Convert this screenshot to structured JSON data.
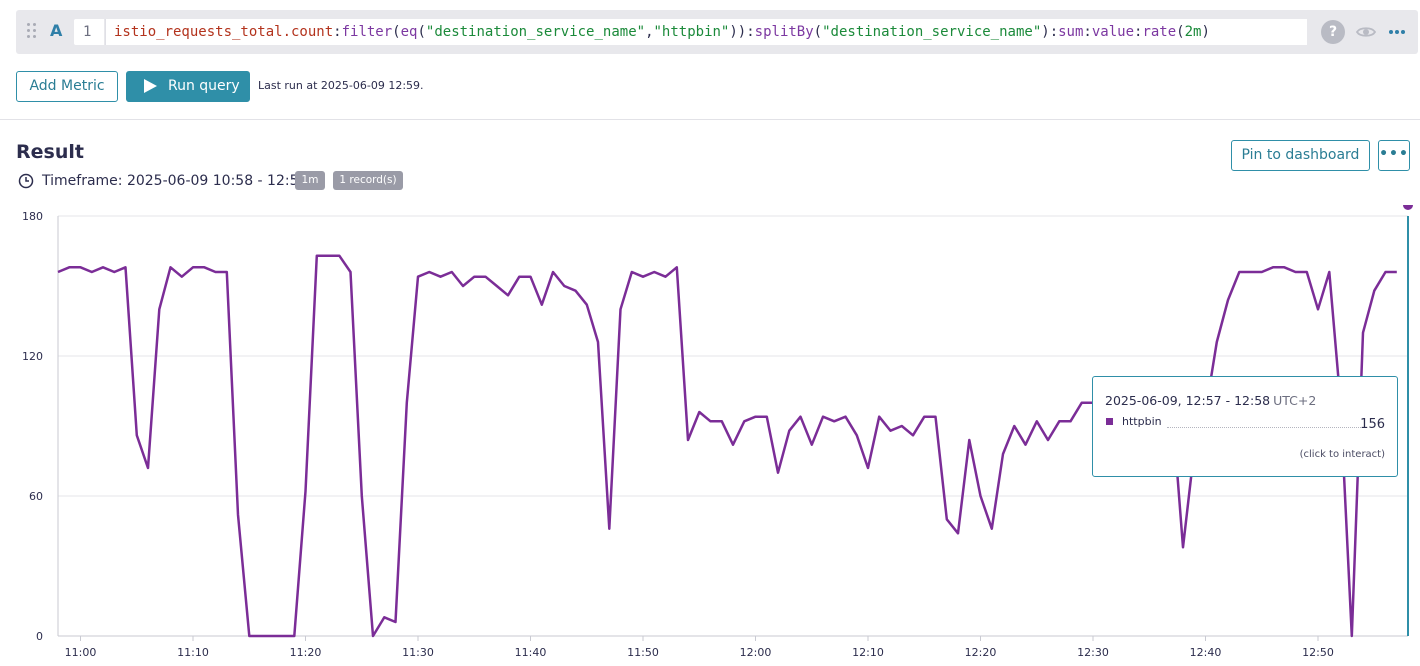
{
  "query": {
    "letter": "A",
    "line_number": "1",
    "tokens": [
      {
        "t": "istio_requests_total.count",
        "c": "metric"
      },
      {
        "t": ":",
        "c": "punc"
      },
      {
        "t": "filter",
        "c": "fn"
      },
      {
        "t": "(",
        "c": "punc"
      },
      {
        "t": "eq",
        "c": "fn"
      },
      {
        "t": "(",
        "c": "punc"
      },
      {
        "t": "\"destination_service_name\"",
        "c": "str"
      },
      {
        "t": ",",
        "c": "punc"
      },
      {
        "t": "\"httpbin\"",
        "c": "str"
      },
      {
        "t": ")):",
        "c": "punc"
      },
      {
        "t": "splitBy",
        "c": "fn"
      },
      {
        "t": "(",
        "c": "punc"
      },
      {
        "t": "\"destination_service_name\"",
        "c": "str"
      },
      {
        "t": "):",
        "c": "punc"
      },
      {
        "t": "sum",
        "c": "fn"
      },
      {
        "t": ":",
        "c": "punc"
      },
      {
        "t": "value",
        "c": "fn"
      },
      {
        "t": ":",
        "c": "punc"
      },
      {
        "t": "rate",
        "c": "fn"
      },
      {
        "t": "(",
        "c": "punc"
      },
      {
        "t": "2m",
        "c": "num"
      },
      {
        "t": ")",
        "c": "punc"
      }
    ],
    "help_icon": "?"
  },
  "icons": {
    "drag": "drag-handle-icon",
    "help": "help-icon",
    "visibility": "eye-icon",
    "more": "more-horizontal-icon",
    "run": "play-icon",
    "clock": "clock-icon"
  },
  "toolbar": {
    "add_metric_label": "Add Metric",
    "run_query_label": "Run query",
    "last_run": "Last run at 2025-06-09 12:59."
  },
  "result": {
    "title": "Result",
    "timeframe": "Timeframe: 2025-06-09 10:58 - 12:58",
    "interval_badge": "1m",
    "records_badge": "1 record(s)",
    "pin_label": "Pin to dashboard",
    "more_label": "•••"
  },
  "tooltip": {
    "time": "2025-06-09, 12:57 - 12:58",
    "timezone": "UTC+2",
    "series_name": "httpbin",
    "value": "156",
    "hint": "(click to interact)"
  },
  "colors": {
    "accent": "#2f8fa8",
    "series": "#7b2d97",
    "grid": "#e4e4ea"
  },
  "chart_data": {
    "type": "line",
    "ylim": [
      0,
      180
    ],
    "y_ticks": [
      "0",
      "60",
      "120",
      "180"
    ],
    "x_ticks": [
      "11:00",
      "11:10",
      "11:20",
      "11:30",
      "11:40",
      "11:50",
      "12:00",
      "12:10",
      "12:20",
      "12:30",
      "12:40",
      "12:50"
    ],
    "grid": true,
    "x_start_minute": -2,
    "x_end_minute": 118,
    "x_minutes_per_point": 1,
    "series": [
      {
        "name": "httpbin",
        "values": [
          156,
          158,
          158,
          156,
          158,
          156,
          158,
          86,
          72,
          140,
          158,
          154,
          158,
          158,
          156,
          156,
          52,
          0,
          0,
          0,
          0,
          0,
          62,
          163,
          163,
          163,
          156,
          60,
          0,
          8,
          6,
          100,
          154,
          156,
          154,
          156,
          150,
          154,
          154,
          150,
          146,
          154,
          154,
          142,
          156,
          150,
          148,
          142,
          126,
          46,
          140,
          156,
          154,
          156,
          154,
          158,
          84,
          96,
          92,
          92,
          82,
          92,
          94,
          94,
          70,
          88,
          94,
          82,
          94,
          92,
          94,
          86,
          72,
          94,
          88,
          90,
          86,
          94,
          94,
          50,
          44,
          84,
          60,
          46,
          78,
          90,
          82,
          92,
          84,
          92,
          92,
          100,
          100,
          92,
          100,
          100,
          90,
          96,
          92,
          100,
          38,
          80,
          96,
          126,
          144,
          156,
          156,
          156,
          158,
          158,
          156,
          156,
          140,
          156,
          100,
          0,
          130,
          148,
          156,
          156
        ]
      }
    ],
    "highlight_index": 120
  }
}
